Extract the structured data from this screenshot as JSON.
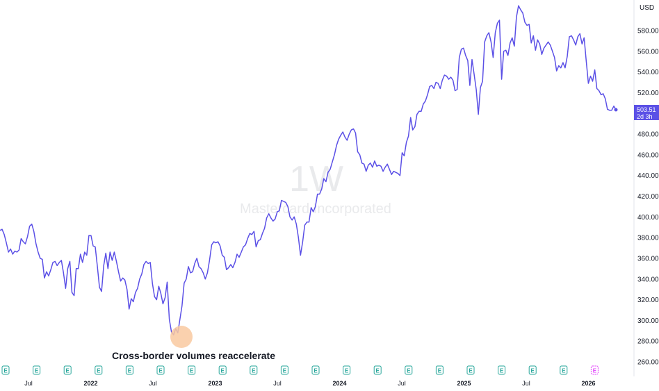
{
  "chart_data": {
    "type": "line",
    "currency": "USD",
    "interval": "1W",
    "symbol_name": "Mastercard Incorporated",
    "last_price": "503.51",
    "countdown": "2d 3h",
    "annotation": "Cross-border volumes reaccelerate",
    "ylim": [
      250,
      606
    ],
    "y_ticks": [
      "580.00",
      "560.00",
      "540.00",
      "520.00",
      "500.00",
      "480.00",
      "460.00",
      "440.00",
      "420.00",
      "400.00",
      "380.00",
      "360.00",
      "340.00",
      "320.00",
      "300.00",
      "280.00",
      "260.00"
    ],
    "x_tick_labels": [
      {
        "label": "Jul",
        "year": false
      },
      {
        "label": "2022",
        "year": true
      },
      {
        "label": "Jul",
        "year": false
      },
      {
        "label": "2023",
        "year": true
      },
      {
        "label": "Jul",
        "year": false
      },
      {
        "label": "2024",
        "year": true
      },
      {
        "label": "Jul",
        "year": false
      },
      {
        "label": "2025",
        "year": true
      },
      {
        "label": "Jul",
        "year": false
      },
      {
        "label": "2026",
        "year": true
      }
    ],
    "earnings_marker": "E",
    "earnings_count": 20,
    "line_color": "#5b50e6",
    "series": [
      {
        "values": [
          387,
          388,
          383,
          375,
          366,
          369,
          364,
          367,
          366,
          368,
          379,
          376,
          374,
          381,
          391,
          393,
          386,
          374,
          366,
          360,
          359,
          341,
          347,
          343,
          349,
          356,
          357,
          353,
          356,
          358,
          346,
          331,
          350,
          357,
          327,
          324,
          350,
          350,
          364,
          356,
          366,
          363,
          382,
          382,
          372,
          371,
          352,
          332,
          328,
          353,
          365,
          350,
          366,
          358,
          366,
          357,
          347,
          338,
          341,
          339,
          330,
          311,
          321,
          318,
          327,
          331,
          340,
          345,
          354,
          357,
          355,
          356,
          336,
          323,
          320,
          333,
          326,
          316,
          322,
          337,
          301,
          289,
          286,
          292,
          288,
          301,
          314,
          336,
          340,
          352,
          346,
          347,
          355,
          360,
          352,
          350,
          346,
          340,
          346,
          358,
          373,
          376,
          375,
          376,
          372,
          363,
          361,
          349,
          351,
          354,
          351,
          356,
          364,
          361,
          366,
          371,
          373,
          379,
          384,
          383,
          386,
          371,
          377,
          378,
          384,
          389,
          399,
          403,
          399,
          396,
          398,
          405,
          406,
          416,
          415,
          414,
          410,
          400,
          397,
          400,
          393,
          380,
          363,
          376,
          392,
          395,
          395,
          409,
          405,
          410,
          422,
          422,
          427,
          437,
          434,
          443,
          446,
          453,
          460,
          469,
          475,
          479,
          482,
          477,
          474,
          480,
          484,
          485,
          481,
          463,
          460,
          452,
          451,
          444,
          450,
          452,
          448,
          454,
          449,
          450,
          449,
          444,
          448,
          451,
          446,
          441,
          444,
          443,
          442,
          440,
          462,
          459,
          472,
          478,
          496,
          484,
          487,
          499,
          502,
          502,
          509,
          512,
          518,
          526,
          527,
          524,
          530,
          529,
          524,
          532,
          537,
          536,
          533,
          535,
          532,
          522,
          523,
          554,
          562,
          563,
          556,
          551,
          527,
          552,
          538,
          523,
          499,
          525,
          531,
          569,
          575,
          578,
          569,
          554,
          578,
          587,
          590,
          533,
          560,
          561,
          556,
          568,
          573,
          565,
          593,
          604,
          600,
          597,
          588,
          585,
          586,
          568,
          575,
          561,
          571,
          567,
          557,
          563,
          566,
          569,
          566,
          560,
          554,
          541,
          546,
          544,
          549,
          544,
          555,
          574,
          575,
          571,
          566,
          574,
          577,
          567,
          573,
          550,
          529,
          536,
          531,
          542,
          524,
          522,
          518,
          519,
          514,
          504,
          503,
          503,
          507,
          503.51
        ]
      }
    ]
  }
}
